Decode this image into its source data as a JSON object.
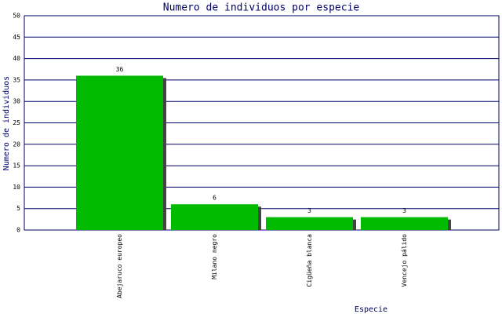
{
  "chart_data": {
    "type": "bar",
    "title": "Numero de individuos por especie",
    "y_label": "Numero de individuos",
    "x_label": "Especie",
    "categories": [
      "Abejaruco europeo",
      "Milano negro",
      "Cigüeña blanca",
      "Vencejo pálido"
    ],
    "values": [
      36,
      6,
      3,
      3
    ],
    "color": "#00bb00",
    "ylim": [
      0,
      50
    ],
    "yticks": [
      0,
      5,
      10,
      15,
      20,
      25,
      30,
      35,
      40,
      45,
      50
    ],
    "grid": true
  }
}
